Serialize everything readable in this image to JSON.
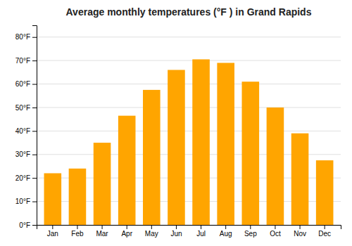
{
  "chart_data": {
    "type": "bar",
    "title": "Average monthly temperatures (°F ) in Grand Rapids",
    "categories": [
      "Jan",
      "Feb",
      "Mar",
      "Apr",
      "May",
      "Jun",
      "Jul",
      "Aug",
      "Sep",
      "Oct",
      "Nov",
      "Dec"
    ],
    "values": [
      22,
      24,
      35,
      46.5,
      57.5,
      66,
      70.5,
      69,
      61,
      50,
      39,
      27.5
    ],
    "color": "#FFA500",
    "ylim": [
      0,
      85
    ],
    "yticks": [
      {
        "value": 0,
        "label": "0°F"
      },
      {
        "value": 10,
        "label": "10°F"
      },
      {
        "value": 20,
        "label": "20°F"
      },
      {
        "value": 30,
        "label": "30°F"
      },
      {
        "value": 40,
        "label": "40°F"
      },
      {
        "value": 50,
        "label": "50°F"
      },
      {
        "value": 60,
        "label": "60°F"
      },
      {
        "value": 70,
        "label": "70°F"
      },
      {
        "value": 80,
        "label": "80°F"
      }
    ],
    "grid": true
  }
}
